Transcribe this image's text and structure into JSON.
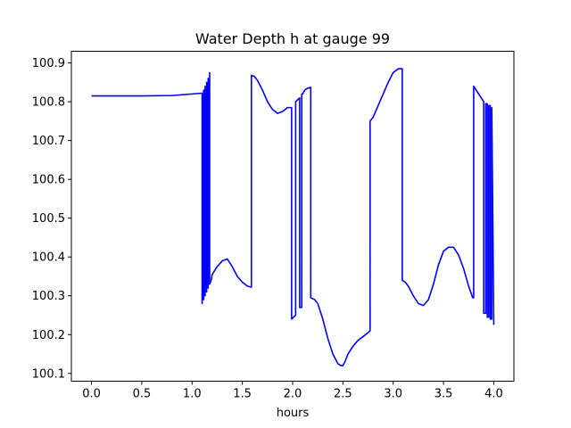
{
  "chart_data": {
    "type": "line",
    "title": "Water Depth h at gauge 99",
    "xlabel": "hours",
    "ylabel": "",
    "xlim": [
      -0.2,
      4.2
    ],
    "ylim": [
      100.08,
      100.93
    ],
    "xticks": [
      0.0,
      0.5,
      1.0,
      1.5,
      2.0,
      2.5,
      3.0,
      3.5,
      4.0
    ],
    "xtick_labels": [
      "0.0",
      "0.5",
      "1.0",
      "1.5",
      "2.0",
      "2.5",
      "3.0",
      "3.5",
      "4.0"
    ],
    "yticks": [
      100.1,
      100.2,
      100.3,
      100.4,
      100.5,
      100.6,
      100.7,
      100.8,
      100.9
    ],
    "ytick_labels": [
      "100.1",
      "100.2",
      "100.3",
      "100.4",
      "100.5",
      "100.6",
      "100.7",
      "100.8",
      "100.9"
    ],
    "grid": false,
    "series": [
      {
        "color": "#0000ff",
        "x": [
          0.0,
          0.5,
          0.8,
          1.0,
          1.1,
          1.1,
          1.115,
          1.115,
          1.13,
          1.13,
          1.145,
          1.145,
          1.16,
          1.16,
          1.175,
          1.175,
          1.19,
          1.2,
          1.25,
          1.3,
          1.35,
          1.4,
          1.45,
          1.5,
          1.55,
          1.59,
          1.59,
          1.62,
          1.65,
          1.7,
          1.75,
          1.8,
          1.85,
          1.9,
          1.95,
          1.98,
          1.99,
          1.99,
          2.03,
          2.03,
          2.07,
          2.07,
          2.09,
          2.09,
          2.1,
          2.1,
          2.12,
          2.15,
          2.18,
          2.18,
          2.22,
          2.25,
          2.3,
          2.35,
          2.4,
          2.45,
          2.48,
          2.5,
          2.52,
          2.55,
          2.6,
          2.65,
          2.7,
          2.75,
          2.77,
          2.77,
          2.8,
          2.85,
          2.9,
          2.95,
          3.0,
          3.05,
          3.09,
          3.09,
          3.12,
          3.15,
          3.2,
          3.25,
          3.3,
          3.35,
          3.4,
          3.45,
          3.5,
          3.55,
          3.6,
          3.65,
          3.7,
          3.75,
          3.79,
          3.8,
          3.8,
          3.85,
          3.9,
          3.9,
          3.92,
          3.92,
          3.935,
          3.935,
          3.95,
          3.95,
          3.965,
          3.965,
          3.98,
          3.98,
          4.0
        ],
        "y": [
          100.815,
          100.815,
          100.816,
          100.82,
          100.822,
          100.28,
          100.83,
          100.29,
          100.84,
          100.3,
          100.85,
          100.31,
          100.86,
          100.32,
          100.875,
          100.33,
          100.34,
          100.355,
          100.375,
          100.39,
          100.395,
          100.375,
          100.35,
          100.335,
          100.325,
          100.322,
          100.868,
          100.865,
          100.855,
          100.83,
          100.8,
          100.78,
          100.77,
          100.775,
          100.785,
          100.785,
          100.785,
          100.24,
          100.25,
          100.8,
          100.81,
          100.27,
          100.27,
          100.82,
          100.82,
          100.82,
          100.83,
          100.835,
          100.837,
          100.295,
          100.29,
          100.28,
          100.24,
          100.19,
          100.15,
          100.125,
          100.12,
          100.12,
          100.13,
          100.15,
          100.17,
          100.185,
          100.195,
          100.205,
          100.21,
          100.75,
          100.76,
          100.79,
          100.82,
          100.85,
          100.875,
          100.885,
          100.885,
          100.34,
          100.335,
          100.325,
          100.3,
          100.28,
          100.275,
          100.29,
          100.33,
          100.38,
          100.415,
          100.425,
          100.425,
          100.405,
          100.37,
          100.325,
          100.295,
          100.295,
          100.84,
          100.82,
          100.8,
          100.255,
          100.255,
          100.795,
          100.795,
          100.245,
          100.245,
          100.79,
          100.79,
          100.24,
          100.24,
          100.785,
          100.225
        ]
      }
    ]
  }
}
